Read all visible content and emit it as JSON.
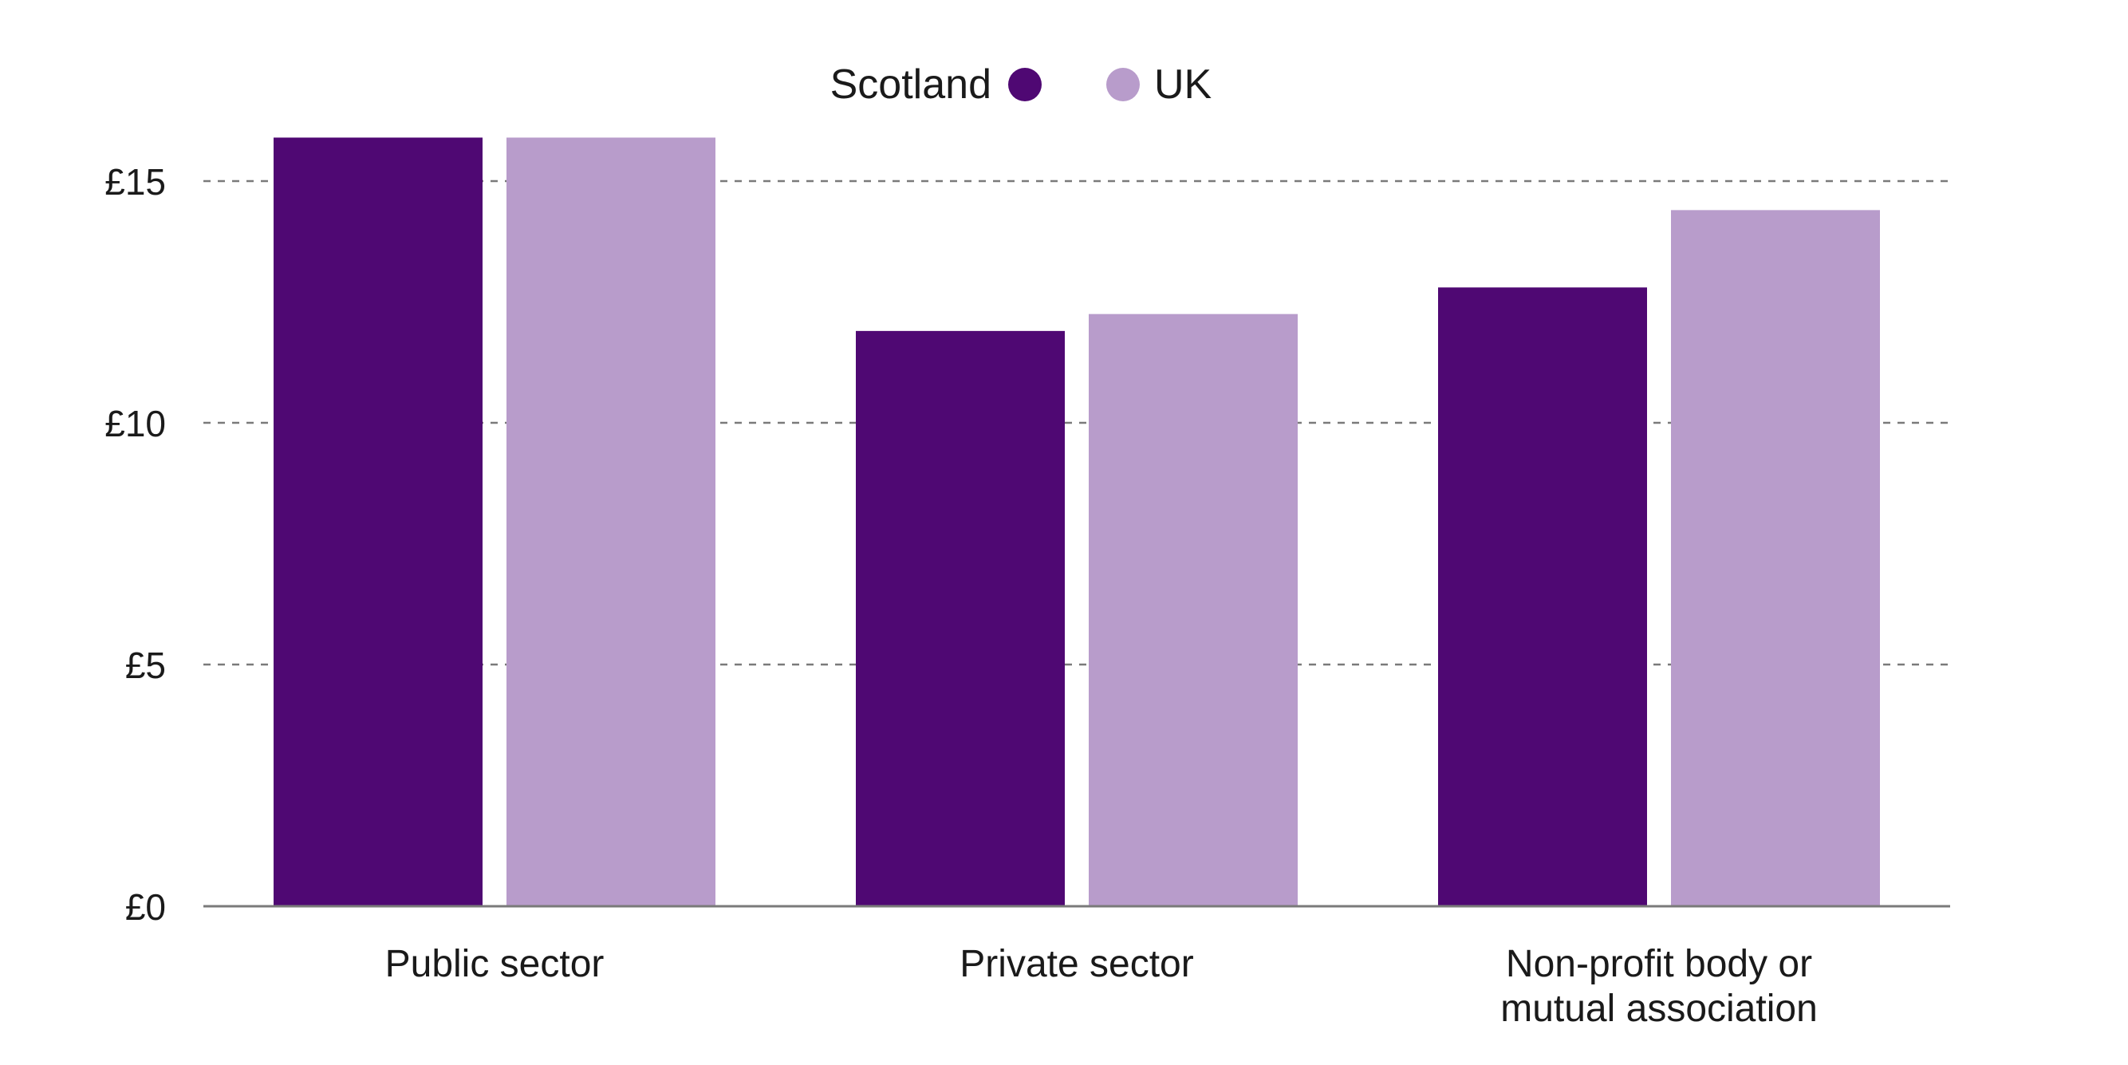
{
  "chart_data": {
    "type": "bar",
    "categories": [
      "Public sector",
      "Private sector",
      "Non-profit body or mutual association"
    ],
    "category_lines": [
      [
        "Public sector"
      ],
      [
        "Private sector"
      ],
      [
        "Non-profit body or",
        "mutual association"
      ]
    ],
    "series": [
      {
        "name": "Scotland",
        "color": "#4f0873",
        "values": [
          15.9,
          11.9,
          12.8
        ]
      },
      {
        "name": "UK",
        "color": "#b89ccb",
        "values": [
          15.9,
          12.25,
          14.4
        ]
      }
    ],
    "y_ticks": [
      0,
      5,
      10,
      15
    ],
    "y_tick_labels": [
      "£0",
      "£5",
      "£10",
      "£15"
    ],
    "ylim": [
      0,
      15.95
    ],
    "grid": true,
    "grid_style": "dashed",
    "legend_position": "top-center",
    "title": "",
    "xlabel": "",
    "ylabel": ""
  }
}
